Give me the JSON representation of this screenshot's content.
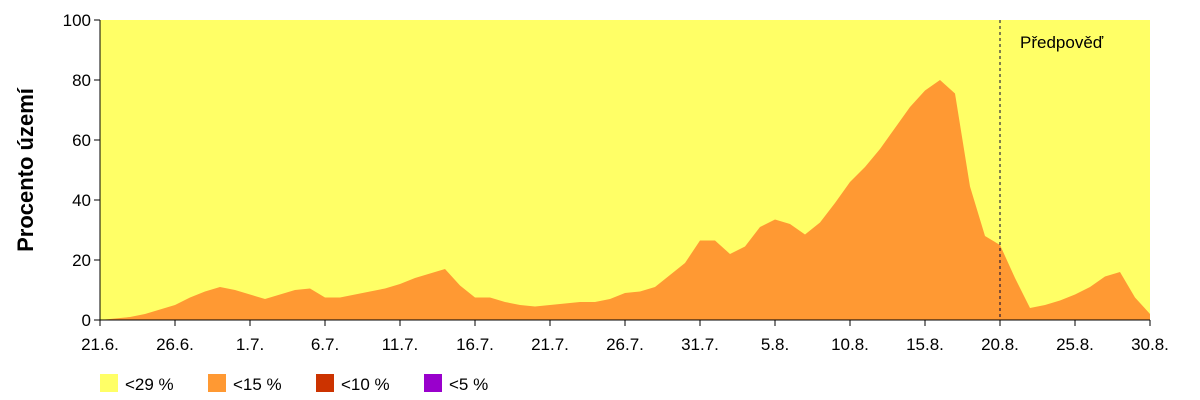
{
  "chart_data": {
    "type": "area",
    "ylabel": "Procento území",
    "ylim": [
      0,
      100
    ],
    "yticks": [
      "0",
      "20",
      "40",
      "60",
      "80",
      "100"
    ],
    "x_start": "21.6.",
    "x_end": "30.8.",
    "xticks": [
      "21.6.",
      "26.6.",
      "1.7.",
      "6.7.",
      "11.7.",
      "16.7.",
      "21.7.",
      "26.7.",
      "31.7.",
      "5.8.",
      "10.8.",
      "15.8.",
      "20.8.",
      "25.8.",
      "30.8."
    ],
    "grid": false,
    "legend_position": "bottom-left",
    "forecast": {
      "label": "Předpověď",
      "at": "20.8."
    },
    "series": [
      {
        "name": "<29 %",
        "color": "#ffff66",
        "values": [
          100,
          100,
          100,
          100,
          100,
          100,
          100,
          100,
          100,
          100,
          100,
          100,
          100,
          100,
          100,
          100,
          100,
          100,
          100,
          100,
          100,
          100,
          100,
          100,
          100,
          100,
          100,
          100,
          100,
          100,
          100,
          100,
          100,
          100,
          100,
          100,
          100,
          100,
          100,
          100,
          100,
          100,
          100,
          100,
          100,
          100,
          100,
          100,
          100,
          100,
          100,
          100,
          100,
          100,
          100,
          100,
          100,
          100,
          100,
          100,
          100,
          100,
          100,
          100,
          100,
          100,
          100,
          100,
          100,
          100,
          100
        ]
      },
      {
        "name": "<15 %",
        "color": "#ff9933",
        "values": [
          0,
          0.5,
          1,
          2,
          3.5,
          5,
          7.5,
          9.5,
          11,
          10,
          8.5,
          7,
          8.5,
          10,
          10.5,
          7.5,
          7.5,
          8.5,
          9.5,
          10.5,
          12,
          14,
          15.5,
          17,
          11.5,
          7.5,
          7.5,
          6,
          5,
          4.5,
          5,
          5.5,
          6,
          6,
          7,
          9,
          9.5,
          11,
          15,
          19,
          26.5,
          26.5,
          22,
          24.5,
          31,
          33.5,
          32,
          28.5,
          32.5,
          39,
          46,
          51,
          57,
          64,
          71,
          76.5,
          80,
          75.5,
          44.5,
          28,
          25,
          14,
          4,
          5,
          6.5,
          8.5,
          11,
          14.5,
          16,
          7.5,
          2
        ]
      },
      {
        "name": "<10 %",
        "color": "#cc3300",
        "values": []
      },
      {
        "name": "<5 %",
        "color": "#9900cc",
        "values": []
      }
    ]
  }
}
